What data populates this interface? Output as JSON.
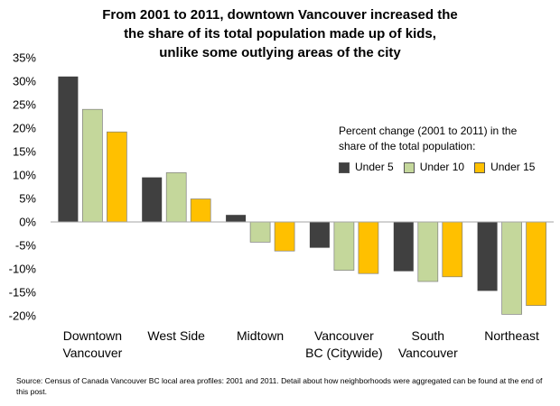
{
  "chart_data": {
    "type": "bar",
    "title_lines": [
      "From 2001 to 2011, downtown Vancouver increased the",
      "the share of its total population made up of kids,",
      "unlike some outlying areas of the city"
    ],
    "categories": [
      [
        "Downtown",
        "Vancouver"
      ],
      [
        "West Side"
      ],
      [
        "Midtown"
      ],
      [
        "Vancouver",
        "BC (Citywide)"
      ],
      [
        "South",
        "Vancouver"
      ],
      [
        "Northeast"
      ]
    ],
    "series": [
      {
        "name": "Under 5",
        "color": "#404040",
        "values": [
          31,
          9.5,
          1.5,
          -5.5,
          -10.5,
          -14.7
        ]
      },
      {
        "name": "Under 10",
        "color": "#c4d79b",
        "values": [
          24,
          10.5,
          -4.3,
          -10.3,
          -12.7,
          -19.7
        ]
      },
      {
        "name": "Under 15",
        "color": "#ffc000",
        "values": [
          19.2,
          4.9,
          -6.2,
          -11,
          -11.7,
          -17.8
        ]
      }
    ],
    "ylim": [
      -20,
      35
    ],
    "yticks": [
      35,
      30,
      25,
      20,
      15,
      10,
      5,
      0,
      -5,
      -10,
      -15,
      -20
    ],
    "ytick_suffix": "%",
    "legend": {
      "title_lines": [
        "Percent change (2001 to 2011)  in the",
        "share of the total population:"
      ],
      "placement": "right"
    },
    "grid": false
  },
  "source_note": "Source: Census of Canada Vancouver BC local area profiles: 2001 and 2011. Detail about how neighborhoods were aggregated can be found at the end of this post."
}
